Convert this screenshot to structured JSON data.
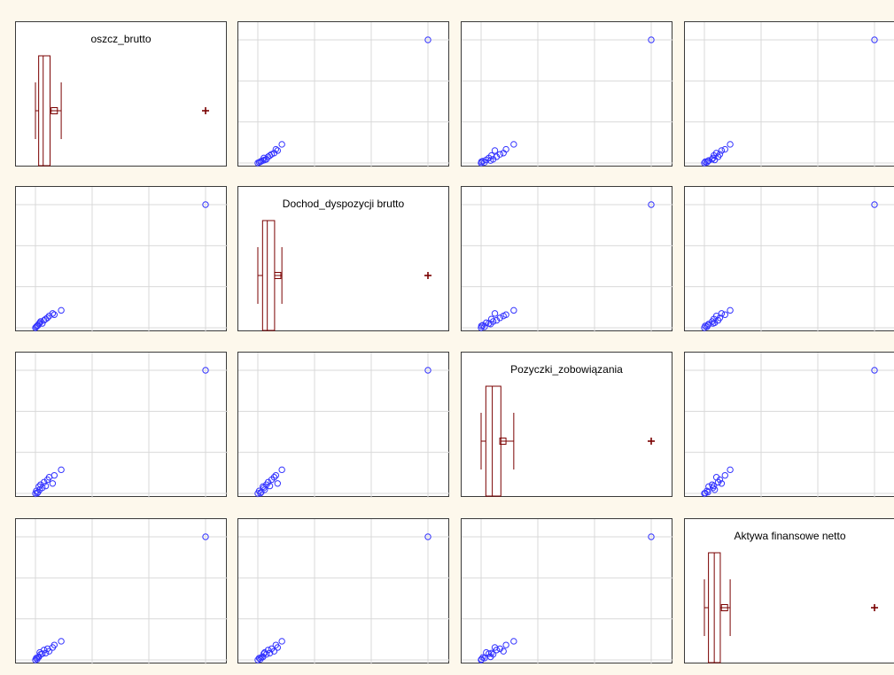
{
  "colors": {
    "background": "#fdf8ec",
    "grid": "#d9d9d9",
    "points": "#3333ff",
    "box": "#7a0000"
  },
  "chart_data": {
    "type": "scatter",
    "subtype": "scatter-matrix",
    "variables": [
      "oszcz_brutto",
      "Dochod_dyspozycji brutto",
      "Pozyczki_zobowiązania",
      "Aktywa finansowe netto"
    ],
    "grid": true,
    "diagonal": "box-plot",
    "observations": [
      [
        1.0,
        1.0,
        1.0,
        1.0
      ],
      [
        1.5,
        1.8,
        3.0,
        2.5
      ],
      [
        2.0,
        2.5,
        1.2,
        1.5
      ],
      [
        2.5,
        3.0,
        2.0,
        3.0
      ],
      [
        3.0,
        4.0,
        6.5,
        3.5
      ],
      [
        3.5,
        5.0,
        4.0,
        7.0
      ],
      [
        4.0,
        6.0,
        8.0,
        5.5
      ],
      [
        5.0,
        4.5,
        5.5,
        6.0
      ],
      [
        6.0,
        7.0,
        10.0,
        9.0
      ],
      [
        7.0,
        8.0,
        7.0,
        6.5
      ],
      [
        8.0,
        9.0,
        12.0,
        10.0
      ],
      [
        9.0,
        10.5,
        14.0,
        8.0
      ],
      [
        11.0,
        12.5,
        9.0,
        11.0
      ],
      [
        12.0,
        11.5,
        15.5,
        13.0
      ],
      [
        16.0,
        15.0,
        20.0,
        16.0
      ],
      [
        100.0,
        100.0,
        100.0,
        100.0
      ]
    ]
  }
}
